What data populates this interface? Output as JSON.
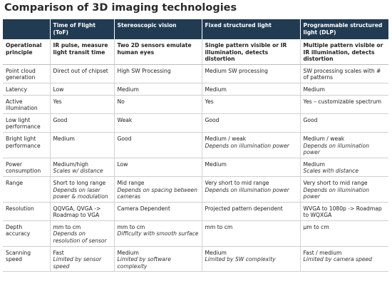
{
  "title": "Comparison of 3D imaging technologies",
  "columns": [
    "",
    "Time of Flight (ToF)",
    "Stereoscopic vision",
    "Fixed structured light",
    "Programmable structured light (DLP)"
  ],
  "rows": [
    {
      "label": "Operational principle",
      "cells": [
        {
          "main": "IR pulse, measure light transit time"
        },
        {
          "main": "Two 2D sensors emulate human eyes"
        },
        {
          "main": "Single pattern visible or IR illumination, detects distortion"
        },
        {
          "main": "Multiple pattern visible or IR illumination, detects distortion"
        }
      ]
    },
    {
      "label": "Point cloud generation",
      "cells": [
        {
          "main": "Direct out of chipset"
        },
        {
          "main": "High SW Processing"
        },
        {
          "main": "Medium SW processing"
        },
        {
          "main": "SW processing scales with # of patterns"
        }
      ]
    },
    {
      "label": "Latency",
      "cells": [
        {
          "main": "Low"
        },
        {
          "main": "Medium"
        },
        {
          "main": "Medium"
        },
        {
          "main": "Medium"
        }
      ]
    },
    {
      "label": "Active illumination",
      "cells": [
        {
          "main": "Yes"
        },
        {
          "main": "No"
        },
        {
          "main": "Yes"
        },
        {
          "main": "Yes – customizable spectrum"
        }
      ]
    },
    {
      "label": "Low light performance",
      "cells": [
        {
          "main": "Good"
        },
        {
          "main": "Weak"
        },
        {
          "main": "Good"
        },
        {
          "main": "Good"
        }
      ]
    },
    {
      "label": "Bright light performance",
      "cells": [
        {
          "main": "Medium"
        },
        {
          "main": "Good"
        },
        {
          "main": "Medium / weak",
          "note": "Depends on illumination power"
        },
        {
          "main": "Medium / weak",
          "note": "Depends on illumination power"
        }
      ]
    },
    {
      "label": "Power consumption",
      "cells": [
        {
          "main": "Medium/high",
          "note": "Scales w/ distance"
        },
        {
          "main": "Low"
        },
        {
          "main": "Medium"
        },
        {
          "main": "Medium",
          "note": "Scales with distance"
        }
      ]
    },
    {
      "label": "Range",
      "cells": [
        {
          "main": "Short to long range",
          "note": "Depends on laser power & modulation"
        },
        {
          "main": "Mid range",
          "note": "Depends on spacing between cameras"
        },
        {
          "main": "Very short to mid range",
          "note": "Depends on illumination power"
        },
        {
          "main": "Very short to mid range",
          "note": "Depends on illumination power"
        }
      ]
    },
    {
      "label": "Resolution",
      "cells": [
        {
          "main": "QQVGA, QVGA -> Roadmap to VGA"
        },
        {
          "main": "Camera Dependent"
        },
        {
          "main": "Projected pattern dependent"
        },
        {
          "main": "WVGA to 1080p -> Roadmap to WQXGA"
        }
      ]
    },
    {
      "label": "Depth accuracy",
      "cells": [
        {
          "main": "mm to cm",
          "note": "Depends on resolution of sensor"
        },
        {
          "main": "mm to cm",
          "note": "Difficulty with smooth surface"
        },
        {
          "main": "mm to cm"
        },
        {
          "main": "µm to cm"
        }
      ]
    },
    {
      "label": "Scanning speed",
      "cells": [
        {
          "main": "Fast",
          "note": "Limited by sensor speed"
        },
        {
          "main": "Medium",
          "note": "Limited by software complexity"
        },
        {
          "main": "Medium",
          "note": "Limited by SW complexity"
        },
        {
          "main": "Fast / medium",
          "note": "Limited by camera speed"
        }
      ]
    }
  ]
}
